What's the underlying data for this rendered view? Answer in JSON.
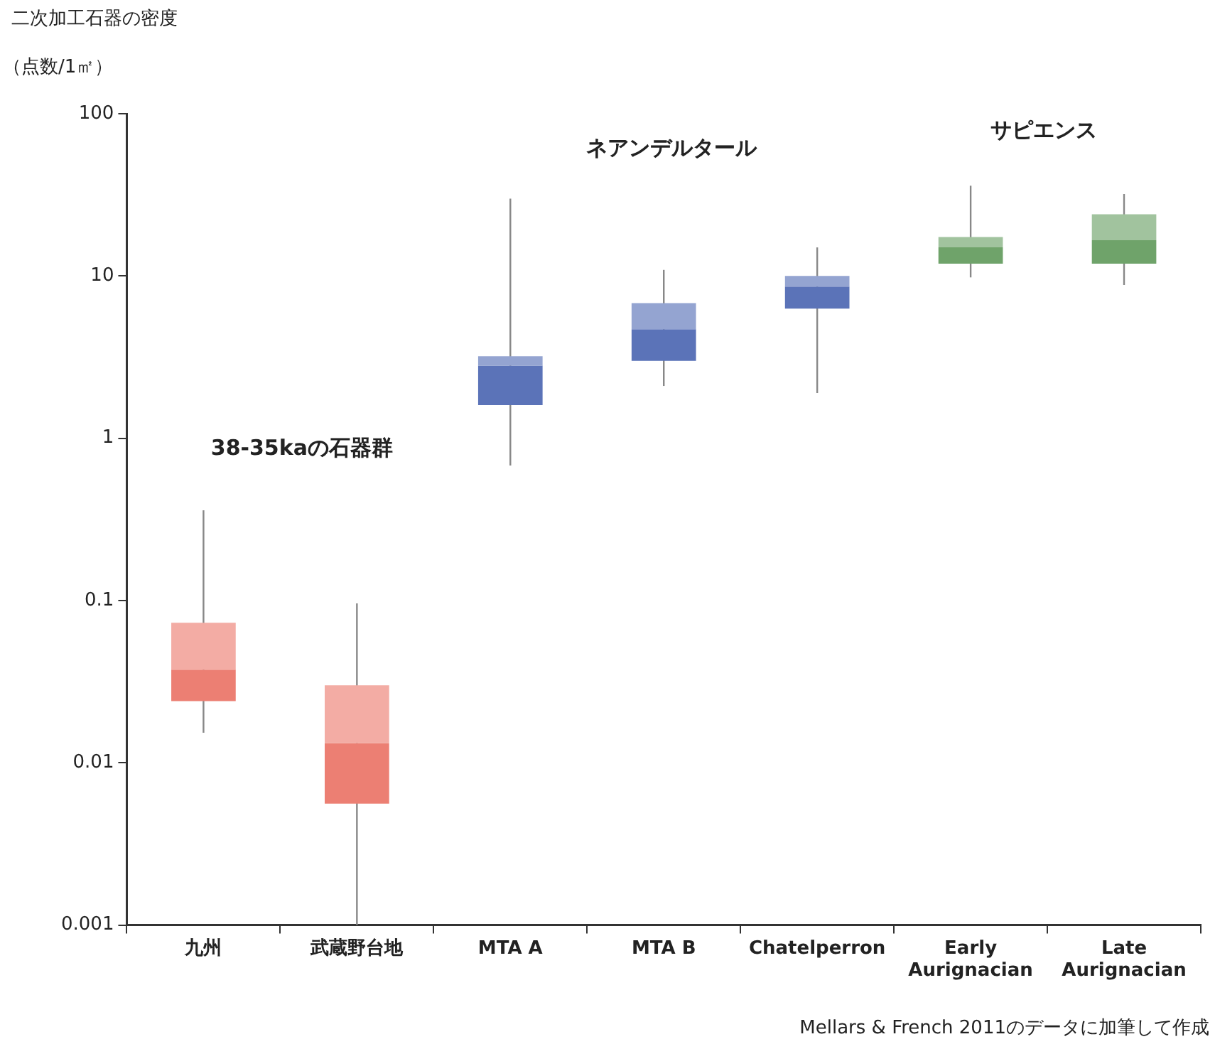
{
  "chart_data": {
    "type": "box",
    "title": "二次加工石器の密度",
    "ylabel": "（点数/1㎡）",
    "categories": [
      "九州",
      "武蔵野台地",
      "MTA A",
      "MTA B",
      "Chatelperron",
      "Early Aurignacian",
      "Late Aurignacian"
    ],
    "log": "y",
    "ylim": [
      0.001,
      100
    ],
    "yticks": [
      0.001,
      0.01,
      0.1,
      1,
      10,
      100
    ],
    "grid": false,
    "legend": false,
    "series": [
      {
        "color": "#ec7f73",
        "boxes": [
          {
            "low": 0.0153,
            "q1": 0.024,
            "median": 0.0375,
            "q3": 0.073,
            "high": 0.36
          },
          {
            "low": 0.001,
            "q1": 0.0056,
            "median": 0.0132,
            "q3": 0.03,
            "high": 0.096
          },
          null,
          null,
          null,
          null,
          null
        ]
      },
      {
        "color": "#5b73b8",
        "boxes": [
          null,
          null,
          {
            "low": 0.68,
            "q1": 1.6,
            "median": 2.8,
            "q3": 3.2,
            "high": 30
          },
          {
            "low": 2.1,
            "q1": 3.0,
            "median": 4.7,
            "q3": 6.8,
            "high": 10.9
          },
          {
            "low": 1.9,
            "q1": 6.3,
            "median": 8.6,
            "q3": 10,
            "high": 15
          },
          null,
          null
        ]
      },
      {
        "color": "#6fa36a",
        "boxes": [
          null,
          null,
          null,
          null,
          null,
          {
            "low": 9.8,
            "q1": 11.9,
            "median": 15,
            "q3": 17.4,
            "high": 36
          },
          {
            "low": 8.8,
            "q1": 11.9,
            "median": 16.6,
            "q3": 24,
            "high": 32
          }
        ]
      }
    ],
    "annotations": [
      "38-35kaの石器群",
      "ネアンデルタール",
      "サピエンス",
      "Mellars & French 2011のデータに加筆して作成"
    ]
  }
}
